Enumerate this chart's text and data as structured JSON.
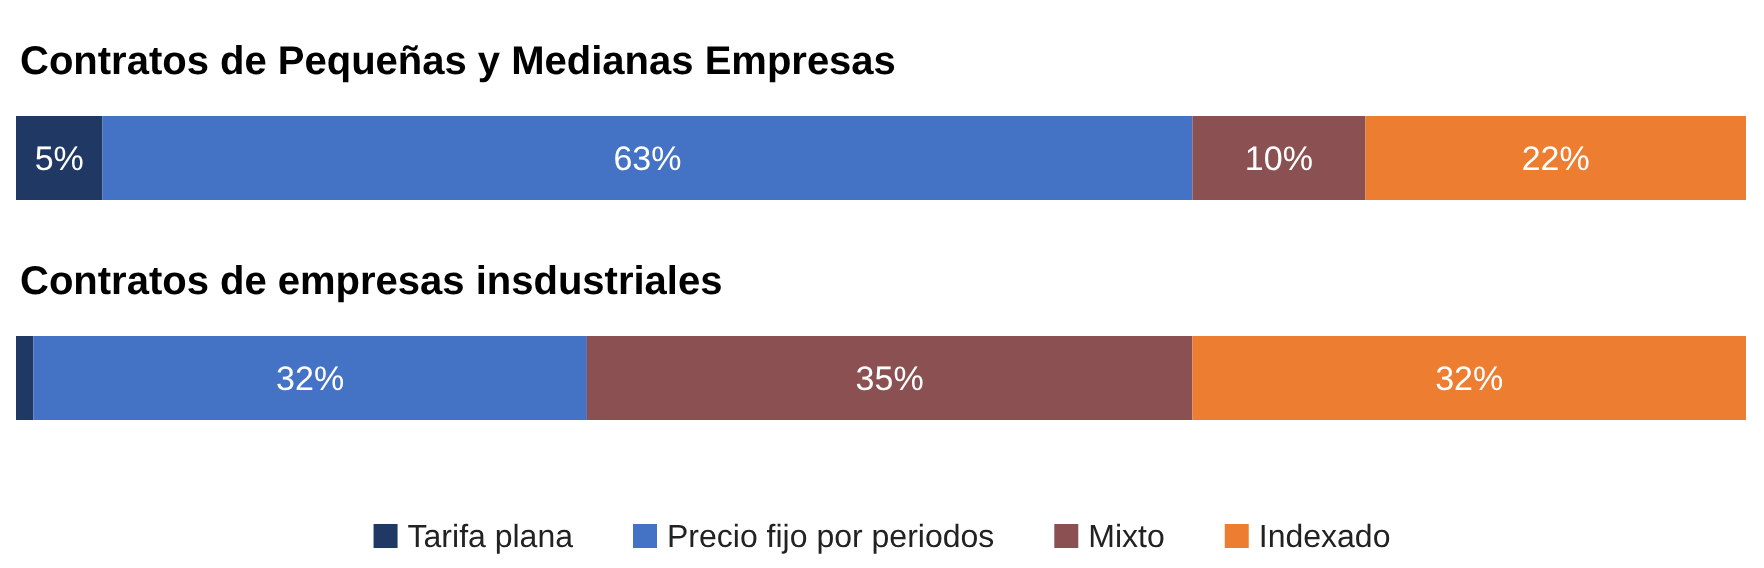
{
  "chart_data": [
    {
      "type": "bar",
      "title": "Contratos de Pequeñas y Medianas Empresas",
      "orientation": "horizontal",
      "stacked": true,
      "categories": [
        null
      ],
      "xlim": [
        0,
        100
      ],
      "tick_labels": false,
      "legend": false,
      "series": [
        {
          "color": "#1f3864",
          "values": [
            5
          ],
          "value_labels": [
            "5%"
          ]
        },
        {
          "color": "#4472c4",
          "values": [
            63
          ],
          "value_labels": [
            "63%"
          ]
        },
        {
          "color": "#8b5152",
          "values": [
            10
          ],
          "value_labels": [
            "10%"
          ]
        },
        {
          "color": "#ed7d31",
          "values": [
            22
          ],
          "value_labels": [
            "22%"
          ]
        }
      ]
    },
    {
      "type": "bar",
      "title": "Contratos de empresas insdustriales",
      "orientation": "horizontal",
      "stacked": true,
      "categories": [
        null
      ],
      "xlim": [
        0,
        100
      ],
      "tick_labels": false,
      "legend": "bottom",
      "series": [
        {
          "name": "Tarifa plana",
          "color": "#1f3864",
          "values": [
            1
          ],
          "value_labels": [
            null
          ]
        },
        {
          "name": "Precio fijo por periodos",
          "color": "#4472c4",
          "values": [
            32
          ],
          "value_labels": [
            "32%"
          ]
        },
        {
          "name": "Mixto",
          "color": "#8b5152",
          "values": [
            35
          ],
          "value_labels": [
            "35%"
          ]
        },
        {
          "name": "Indexado",
          "color": "#ed7d31",
          "values": [
            32
          ],
          "value_labels": [
            "32%"
          ]
        }
      ]
    }
  ]
}
